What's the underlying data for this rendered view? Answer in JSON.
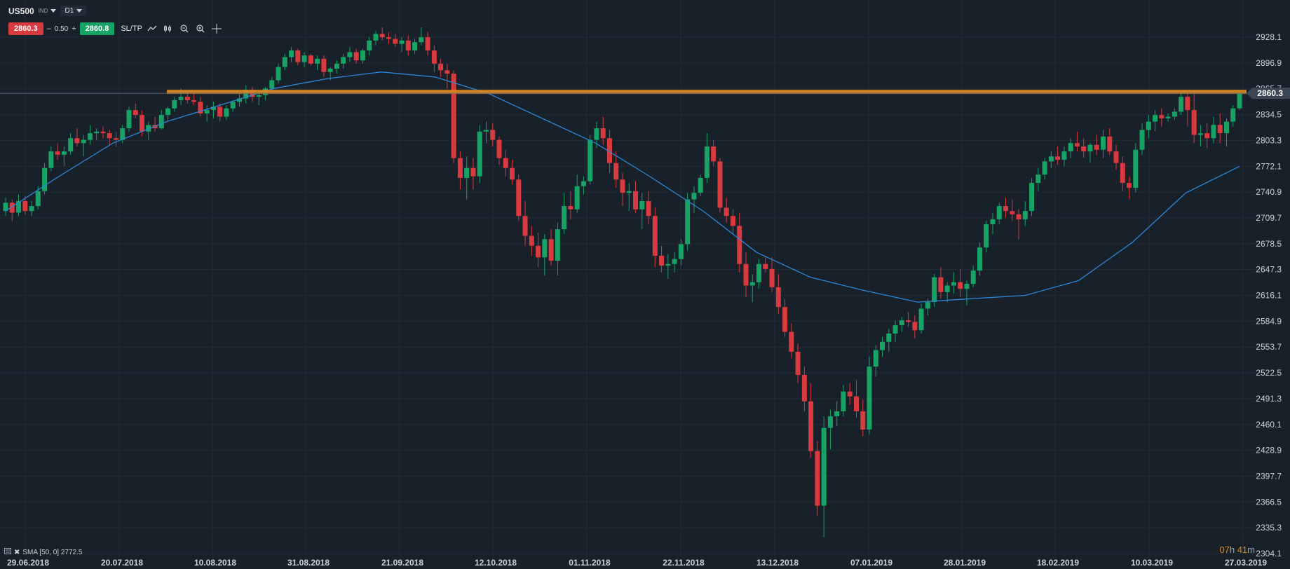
{
  "header": {
    "symbol": "US500",
    "symbol_type": "IND",
    "timeframe": "D1",
    "sell_price": "2860.3",
    "qty_minus": "–",
    "qty": "0.50",
    "qty_plus": "+",
    "buy_price": "2860.8",
    "sltp_label": "SL/TP"
  },
  "legend": {
    "text": "SMA [50, 0] 2772.5"
  },
  "timer": {
    "hours": "07",
    "h_unit": "h",
    "minutes": "41",
    "m_unit": "m"
  },
  "colors": {
    "background": "#18202a",
    "grid": "#222b35",
    "bull": "#17a266",
    "bear": "#d83a3f",
    "sma": "#2d86d6",
    "resistance": "#e08a1e",
    "price_tag": "#3a4654"
  },
  "chart_data": {
    "type": "candlestick",
    "ylim": [
      2304.1,
      2944
    ],
    "y_ticks": [
      "2928.1",
      "2896.9",
      "2865.7",
      "2834.5",
      "2803.3",
      "2772.1",
      "2740.9",
      "2709.7",
      "2678.5",
      "2647.3",
      "2616.1",
      "2584.9",
      "2553.7",
      "2522.5",
      "2491.3",
      "2460.1",
      "2428.9",
      "2397.7",
      "2366.5",
      "2335.3",
      "2304.1"
    ],
    "x_labels": [
      "29.06.2018",
      "20.07.2018",
      "10.08.2018",
      "31.08.2018",
      "21.09.2018",
      "12.10.2018",
      "01.11.2018",
      "22.11.2018",
      "13.12.2018",
      "07.01.2019",
      "28.01.2019",
      "18.02.2019",
      "10.03.2019",
      "27.03.2019"
    ],
    "current_price": "2860.3",
    "resistance_level": 2862,
    "grid": true,
    "ohlc": [
      [
        2718,
        2734,
        2712,
        2728
      ],
      [
        2728,
        2732,
        2706,
        2716
      ],
      [
        2716,
        2738,
        2712,
        2730
      ],
      [
        2730,
        2736,
        2714,
        2718
      ],
      [
        2718,
        2730,
        2712,
        2724
      ],
      [
        2724,
        2748,
        2720,
        2742
      ],
      [
        2742,
        2776,
        2738,
        2770
      ],
      [
        2770,
        2796,
        2766,
        2790
      ],
      [
        2790,
        2800,
        2780,
        2786
      ],
      [
        2786,
        2796,
        2772,
        2790
      ],
      [
        2790,
        2812,
        2786,
        2806
      ],
      [
        2806,
        2818,
        2796,
        2800
      ],
      [
        2800,
        2810,
        2784,
        2804
      ],
      [
        2804,
        2822,
        2798,
        2812
      ],
      [
        2812,
        2818,
        2804,
        2814
      ],
      [
        2814,
        2820,
        2806,
        2812
      ],
      [
        2812,
        2816,
        2798,
        2806
      ],
      [
        2806,
        2814,
        2796,
        2804
      ],
      [
        2804,
        2822,
        2800,
        2818
      ],
      [
        2818,
        2844,
        2814,
        2840
      ],
      [
        2840,
        2848,
        2830,
        2834
      ],
      [
        2834,
        2840,
        2808,
        2814
      ],
      [
        2814,
        2826,
        2804,
        2822
      ],
      [
        2822,
        2832,
        2814,
        2818
      ],
      [
        2818,
        2840,
        2816,
        2834
      ],
      [
        2834,
        2844,
        2826,
        2842
      ],
      [
        2842,
        2856,
        2838,
        2852
      ],
      [
        2852,
        2866,
        2846,
        2856
      ],
      [
        2856,
        2864,
        2848,
        2852
      ],
      [
        2852,
        2860,
        2846,
        2850
      ],
      [
        2850,
        2856,
        2832,
        2836
      ],
      [
        2836,
        2846,
        2826,
        2840
      ],
      [
        2840,
        2850,
        2830,
        2844
      ],
      [
        2844,
        2848,
        2826,
        2832
      ],
      [
        2832,
        2846,
        2828,
        2842
      ],
      [
        2842,
        2852,
        2838,
        2850
      ],
      [
        2850,
        2860,
        2844,
        2854
      ],
      [
        2854,
        2870,
        2848,
        2864
      ],
      [
        2864,
        2868,
        2850,
        2856
      ],
      [
        2856,
        2862,
        2846,
        2858
      ],
      [
        2858,
        2868,
        2852,
        2866
      ],
      [
        2866,
        2880,
        2862,
        2876
      ],
      [
        2876,
        2896,
        2872,
        2892
      ],
      [
        2892,
        2908,
        2888,
        2904
      ],
      [
        2904,
        2916,
        2898,
        2912
      ],
      [
        2912,
        2914,
        2894,
        2898
      ],
      [
        2898,
        2910,
        2892,
        2906
      ],
      [
        2906,
        2908,
        2894,
        2896
      ],
      [
        2896,
        2906,
        2888,
        2902
      ],
      [
        2902,
        2906,
        2880,
        2886
      ],
      [
        2886,
        2892,
        2876,
        2890
      ],
      [
        2890,
        2900,
        2884,
        2896
      ],
      [
        2896,
        2908,
        2890,
        2904
      ],
      [
        2904,
        2916,
        2898,
        2910
      ],
      [
        2910,
        2914,
        2896,
        2900
      ],
      [
        2900,
        2914,
        2896,
        2912
      ],
      [
        2912,
        2928,
        2906,
        2924
      ],
      [
        2924,
        2936,
        2918,
        2932
      ],
      [
        2932,
        2940,
        2924,
        2928
      ],
      [
        2928,
        2934,
        2920,
        2926
      ],
      [
        2926,
        2932,
        2916,
        2920
      ],
      [
        2920,
        2928,
        2910,
        2924
      ],
      [
        2924,
        2930,
        2906,
        2912
      ],
      [
        2912,
        2926,
        2908,
        2922
      ],
      [
        2922,
        2940,
        2918,
        2928
      ],
      [
        2928,
        2934,
        2906,
        2912
      ],
      [
        2912,
        2918,
        2886,
        2896
      ],
      [
        2896,
        2902,
        2880,
        2888
      ],
      [
        2888,
        2896,
        2866,
        2884
      ],
      [
        2884,
        2888,
        2776,
        2782
      ],
      [
        2782,
        2790,
        2744,
        2758
      ],
      [
        2758,
        2784,
        2732,
        2770
      ],
      [
        2770,
        2782,
        2744,
        2760
      ],
      [
        2760,
        2822,
        2752,
        2814
      ],
      [
        2814,
        2826,
        2800,
        2816
      ],
      [
        2816,
        2824,
        2796,
        2804
      ],
      [
        2804,
        2808,
        2774,
        2782
      ],
      [
        2782,
        2792,
        2760,
        2770
      ],
      [
        2770,
        2780,
        2750,
        2756
      ],
      [
        2756,
        2762,
        2706,
        2712
      ],
      [
        2712,
        2730,
        2676,
        2688
      ],
      [
        2688,
        2700,
        2664,
        2676
      ],
      [
        2676,
        2692,
        2650,
        2662
      ],
      [
        2662,
        2690,
        2640,
        2684
      ],
      [
        2684,
        2696,
        2652,
        2658
      ],
      [
        2658,
        2704,
        2640,
        2696
      ],
      [
        2696,
        2740,
        2690,
        2724
      ],
      [
        2724,
        2742,
        2708,
        2720
      ],
      [
        2720,
        2762,
        2716,
        2748
      ],
      [
        2748,
        2760,
        2738,
        2754
      ],
      [
        2754,
        2810,
        2750,
        2804
      ],
      [
        2804,
        2826,
        2794,
        2818
      ],
      [
        2818,
        2832,
        2798,
        2806
      ],
      [
        2806,
        2816,
        2764,
        2776
      ],
      [
        2776,
        2790,
        2746,
        2756
      ],
      [
        2756,
        2764,
        2724,
        2740
      ],
      [
        2740,
        2752,
        2718,
        2742
      ],
      [
        2742,
        2754,
        2716,
        2720
      ],
      [
        2720,
        2740,
        2696,
        2730
      ],
      [
        2730,
        2742,
        2702,
        2712
      ],
      [
        2712,
        2722,
        2650,
        2664
      ],
      [
        2664,
        2676,
        2644,
        2652
      ],
      [
        2652,
        2666,
        2636,
        2654
      ],
      [
        2654,
        2668,
        2644,
        2660
      ],
      [
        2660,
        2684,
        2652,
        2678
      ],
      [
        2678,
        2740,
        2670,
        2732
      ],
      [
        2732,
        2748,
        2716,
        2740
      ],
      [
        2740,
        2762,
        2736,
        2758
      ],
      [
        2758,
        2812,
        2752,
        2796
      ],
      [
        2796,
        2804,
        2772,
        2778
      ],
      [
        2778,
        2782,
        2716,
        2722
      ],
      [
        2722,
        2734,
        2704,
        2712
      ],
      [
        2712,
        2720,
        2690,
        2700
      ],
      [
        2700,
        2716,
        2644,
        2654
      ],
      [
        2654,
        2668,
        2614,
        2628
      ],
      [
        2628,
        2642,
        2608,
        2632
      ],
      [
        2632,
        2660,
        2624,
        2654
      ],
      [
        2654,
        2664,
        2644,
        2648
      ],
      [
        2648,
        2662,
        2620,
        2626
      ],
      [
        2626,
        2642,
        2594,
        2602
      ],
      [
        2602,
        2612,
        2566,
        2572
      ],
      [
        2572,
        2582,
        2540,
        2548
      ],
      [
        2548,
        2558,
        2510,
        2520
      ],
      [
        2520,
        2530,
        2476,
        2488
      ],
      [
        2488,
        2510,
        2420,
        2428
      ],
      [
        2428,
        2440,
        2350,
        2362
      ],
      [
        2362,
        2470,
        2324,
        2456
      ],
      [
        2456,
        2478,
        2430,
        2470
      ],
      [
        2470,
        2488,
        2458,
        2476
      ],
      [
        2476,
        2508,
        2470,
        2500
      ],
      [
        2500,
        2510,
        2484,
        2494
      ],
      [
        2494,
        2514,
        2468,
        2476
      ],
      [
        2476,
        2490,
        2446,
        2454
      ],
      [
        2454,
        2542,
        2448,
        2530
      ],
      [
        2530,
        2556,
        2518,
        2550
      ],
      [
        2550,
        2566,
        2542,
        2560
      ],
      [
        2560,
        2576,
        2548,
        2570
      ],
      [
        2570,
        2586,
        2560,
        2580
      ],
      [
        2580,
        2590,
        2572,
        2586
      ],
      [
        2586,
        2596,
        2578,
        2584
      ],
      [
        2584,
        2592,
        2564,
        2574
      ],
      [
        2574,
        2606,
        2570,
        2600
      ],
      [
        2600,
        2612,
        2592,
        2608
      ],
      [
        2608,
        2642,
        2602,
        2638
      ],
      [
        2638,
        2650,
        2612,
        2620
      ],
      [
        2620,
        2632,
        2608,
        2628
      ],
      [
        2628,
        2644,
        2618,
        2632
      ],
      [
        2632,
        2648,
        2614,
        2624
      ],
      [
        2624,
        2634,
        2604,
        2630
      ],
      [
        2630,
        2652,
        2626,
        2646
      ],
      [
        2646,
        2680,
        2640,
        2674
      ],
      [
        2674,
        2706,
        2668,
        2702
      ],
      [
        2702,
        2716,
        2690,
        2708
      ],
      [
        2708,
        2728,
        2702,
        2724
      ],
      [
        2724,
        2734,
        2710,
        2718
      ],
      [
        2718,
        2732,
        2706,
        2714
      ],
      [
        2714,
        2720,
        2684,
        2708
      ],
      [
        2708,
        2730,
        2700,
        2718
      ],
      [
        2718,
        2758,
        2712,
        2752
      ],
      [
        2752,
        2770,
        2742,
        2762
      ],
      [
        2762,
        2782,
        2756,
        2778
      ],
      [
        2778,
        2790,
        2770,
        2784
      ],
      [
        2784,
        2796,
        2774,
        2780
      ],
      [
        2780,
        2796,
        2772,
        2790
      ],
      [
        2790,
        2806,
        2782,
        2800
      ],
      [
        2800,
        2814,
        2790,
        2796
      ],
      [
        2796,
        2806,
        2782,
        2790
      ],
      [
        2790,
        2800,
        2776,
        2798
      ],
      [
        2798,
        2810,
        2786,
        2792
      ],
      [
        2792,
        2816,
        2782,
        2808
      ],
      [
        2808,
        2818,
        2786,
        2790
      ],
      [
        2790,
        2798,
        2768,
        2776
      ],
      [
        2776,
        2784,
        2742,
        2752
      ],
      [
        2752,
        2760,
        2732,
        2746
      ],
      [
        2746,
        2800,
        2740,
        2792
      ],
      [
        2792,
        2824,
        2786,
        2816
      ],
      [
        2816,
        2834,
        2806,
        2826
      ],
      [
        2826,
        2840,
        2814,
        2834
      ],
      [
        2834,
        2842,
        2820,
        2830
      ],
      [
        2830,
        2836,
        2826,
        2832
      ],
      [
        2832,
        2842,
        2828,
        2838
      ],
      [
        2838,
        2862,
        2834,
        2856
      ],
      [
        2856,
        2862,
        2820,
        2840
      ],
      [
        2840,
        2864,
        2800,
        2810
      ],
      [
        2810,
        2822,
        2796,
        2812
      ],
      [
        2812,
        2824,
        2794,
        2806
      ],
      [
        2806,
        2832,
        2800,
        2822
      ],
      [
        2822,
        2836,
        2800,
        2812
      ],
      [
        2812,
        2830,
        2796,
        2826
      ],
      [
        2826,
        2846,
        2820,
        2842
      ],
      [
        2842,
        2862,
        2840,
        2860
      ]
    ],
    "sma_series": {
      "name": "SMA [50, 0]",
      "values": [
        2718,
        2760,
        2800,
        2826,
        2846,
        2866,
        2878,
        2886,
        2880,
        2860,
        2830,
        2800,
        2760,
        2718,
        2668,
        2638,
        2622,
        2608,
        2612,
        2616,
        2634,
        2680,
        2740,
        2772
      ]
    }
  }
}
